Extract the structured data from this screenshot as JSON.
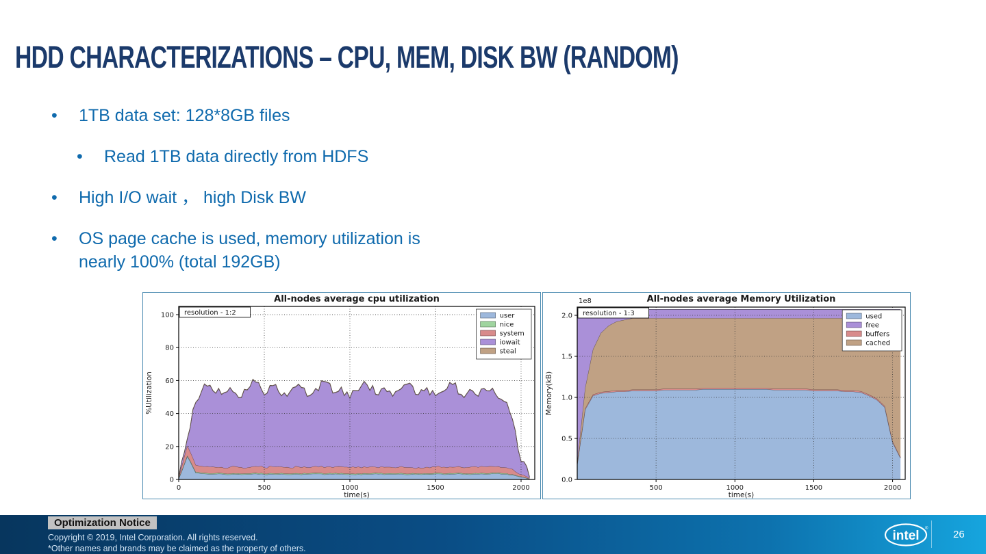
{
  "slide": {
    "title": "HDD CHARACTERIZATIONS – CPU, MEM, DISK BW (RANDOM)",
    "bullet_char": "•",
    "bullets": [
      {
        "level": 1,
        "text": "1TB data set: 128*8GB files"
      },
      {
        "level": 2,
        "text": "Read 1TB data directly from HDFS"
      },
      {
        "level": 1,
        "text": "High I/O wait ，  high Disk BW"
      },
      {
        "level": 1,
        "text": "OS page cache is used, memory utilization is nearly 100% (total 192GB)"
      }
    ]
  },
  "footer": {
    "notice": "Optimization Notice",
    "copyright": "Copyright ©  2019, Intel Corporation. All rights reserved.",
    "brands": "*Other names and brands may be claimed as the property of others.",
    "logo_text": "intel",
    "page": "26"
  },
  "colors": {
    "title_text": "#1b3a6b",
    "bullet_text": "#0f6aad",
    "chart_panel_border": "#4a8ab0",
    "footer_gradient_left": "#07365e",
    "footer_gradient_right": "#16a5de"
  },
  "chart_data": [
    {
      "type": "area",
      "stacked": true,
      "title": "All-nodes average cpu utilization",
      "annotation": "resolution - 1:2",
      "xlabel": "time(s)",
      "ylabel": "%Utilization",
      "xlim": [
        0,
        2080
      ],
      "ylim": [
        0,
        105
      ],
      "xtick_vals": [
        0,
        500,
        1000,
        1500,
        2000
      ],
      "xtick_labels": [
        "0",
        "500",
        "1000",
        "1500",
        "2000"
      ],
      "ytick_vals": [
        0,
        20,
        40,
        60,
        80,
        100
      ],
      "ytick_labels": [
        "0",
        "20",
        "40",
        "60",
        "80",
        "100"
      ],
      "grid": true,
      "legend_position": "top-right",
      "legend_order": [
        "user",
        "nice",
        "system",
        "iowait",
        "steal"
      ],
      "x": [
        0,
        50,
        100,
        150,
        200,
        250,
        300,
        350,
        400,
        450,
        500,
        550,
        600,
        650,
        700,
        750,
        800,
        850,
        900,
        950,
        1000,
        1050,
        1100,
        1150,
        1200,
        1250,
        1300,
        1350,
        1400,
        1450,
        1500,
        1550,
        1600,
        1650,
        1700,
        1750,
        1800,
        1850,
        1900,
        1950,
        2000,
        2050
      ],
      "series": [
        {
          "name": "user",
          "color": "#9db8dc",
          "jitter": 0.3,
          "values": [
            0.5,
            14,
            4,
            3.5,
            3.2,
            3.4,
            3,
            3.2,
            3.1,
            3.5,
            3,
            3.2,
            3.4,
            3,
            3.2,
            3.1,
            3.5,
            3,
            3.2,
            3.4,
            3,
            3.2,
            3.1,
            3.5,
            3,
            3.2,
            3.4,
            3,
            3.2,
            3.1,
            3.5,
            3,
            3.2,
            3.4,
            3,
            3.2,
            3.1,
            3.5,
            3.2,
            2.8,
            1.5,
            0.3
          ]
        },
        {
          "name": "nice",
          "color": "#9fd49f",
          "jitter": 0,
          "values": [
            0.2,
            0.5,
            0.5,
            0.5,
            0.5,
            0.5,
            0.5,
            0.5,
            0.5,
            0.5,
            0.5,
            0.5,
            0.5,
            0.5,
            0.5,
            0.5,
            0.5,
            0.5,
            0.5,
            0.5,
            0.5,
            0.5,
            0.5,
            0.5,
            0.5,
            0.5,
            0.5,
            0.5,
            0.5,
            0.5,
            0.5,
            0.5,
            0.5,
            0.5,
            0.5,
            0.5,
            0.5,
            0.5,
            0.5,
            0.3,
            0.2,
            0.1
          ]
        },
        {
          "name": "system",
          "color": "#d88b8b",
          "jitter": 0.5,
          "values": [
            0.5,
            6,
            4.2,
            3.8,
            4,
            3.6,
            4.1,
            3.8,
            3.6,
            4,
            3.7,
            4.1,
            3.8,
            3.6,
            4,
            3.7,
            4.1,
            3.8,
            3.6,
            4,
            3.7,
            4.1,
            3.8,
            3.6,
            4,
            3.7,
            4.1,
            3.8,
            3.6,
            4,
            3.7,
            4.1,
            3.8,
            3.6,
            4,
            3.7,
            4.1,
            3.8,
            3.6,
            3.2,
            1.2,
            0.3
          ]
        },
        {
          "name": "iowait",
          "color": "#aa90d8",
          "jitter": 3.2,
          "values": [
            0,
            4,
            38,
            50,
            46,
            44,
            48,
            42,
            47,
            51,
            44,
            49,
            43,
            46,
            50,
            43,
            47,
            52,
            45,
            48,
            42,
            46,
            50,
            44,
            48,
            43,
            47,
            51,
            44,
            48,
            43,
            46,
            50,
            44,
            47,
            43,
            46,
            44,
            40,
            30,
            8,
            0.5
          ]
        },
        {
          "name": "steal",
          "color": "#c0a184",
          "jitter": 0,
          "values": [
            0,
            0.2,
            0.2,
            0.2,
            0.2,
            0.2,
            0.2,
            0.2,
            0.2,
            0.2,
            0.2,
            0.2,
            0.2,
            0.2,
            0.2,
            0.2,
            0.2,
            0.2,
            0.2,
            0.2,
            0.2,
            0.2,
            0.2,
            0.2,
            0.2,
            0.2,
            0.2,
            0.2,
            0.2,
            0.2,
            0.2,
            0.2,
            0.2,
            0.2,
            0.2,
            0.2,
            0.2,
            0.2,
            0.2,
            0.2,
            0.1,
            0
          ]
        }
      ]
    },
    {
      "type": "area",
      "stacked": true,
      "title": "All-nodes average Memory Utilization",
      "annotation": "resolution - 1:3",
      "offset_label": "1e8",
      "xlabel": "time(s)",
      "ylabel": "Memory(kB)",
      "xlim": [
        0,
        2080
      ],
      "ylim": [
        0,
        2.1
      ],
      "xtick_vals": [
        500,
        1000,
        1500,
        2000
      ],
      "xtick_labels": [
        "500",
        "1000",
        "1500",
        "2000"
      ],
      "ytick_vals": [
        0,
        0.5,
        1.0,
        1.5,
        2.0
      ],
      "ytick_labels": [
        "0.0",
        "0.5",
        "1.0",
        "1.5",
        "2.0"
      ],
      "grid": true,
      "legend_position": "top-right",
      "legend_order": [
        "used",
        "free",
        "buffers",
        "cached"
      ],
      "x": [
        0,
        50,
        100,
        150,
        200,
        250,
        300,
        350,
        400,
        450,
        500,
        550,
        600,
        650,
        700,
        750,
        800,
        850,
        900,
        950,
        1000,
        1050,
        1100,
        1150,
        1200,
        1250,
        1300,
        1350,
        1400,
        1450,
        1500,
        1550,
        1600,
        1650,
        1700,
        1750,
        1800,
        1850,
        1900,
        1950,
        2000,
        2050
      ],
      "series": [
        {
          "name": "used",
          "color": "#9db8dc",
          "jitter": 0,
          "values": [
            0.18,
            0.85,
            1.02,
            1.05,
            1.06,
            1.07,
            1.07,
            1.08,
            1.08,
            1.08,
            1.08,
            1.09,
            1.09,
            1.09,
            1.09,
            1.09,
            1.1,
            1.1,
            1.1,
            1.1,
            1.1,
            1.1,
            1.1,
            1.1,
            1.1,
            1.09,
            1.09,
            1.09,
            1.09,
            1.09,
            1.08,
            1.08,
            1.08,
            1.08,
            1.07,
            1.07,
            1.06,
            1.02,
            0.97,
            0.88,
            0.45,
            0.26
          ]
        },
        {
          "name": "buffers",
          "color": "#d88b8b",
          "jitter": 0,
          "values": [
            0.01,
            0.015,
            0.015,
            0.015,
            0.015,
            0.015,
            0.015,
            0.015,
            0.015,
            0.015,
            0.015,
            0.015,
            0.015,
            0.015,
            0.015,
            0.015,
            0.015,
            0.015,
            0.015,
            0.015,
            0.015,
            0.015,
            0.015,
            0.015,
            0.015,
            0.015,
            0.015,
            0.015,
            0.015,
            0.015,
            0.015,
            0.015,
            0.015,
            0.015,
            0.015,
            0.015,
            0.015,
            0.015,
            0.015,
            0.015,
            0.015,
            0.01
          ]
        },
        {
          "name": "cached",
          "color": "#c0a184",
          "jitter": 0,
          "values": [
            0.02,
            0.25,
            0.55,
            0.72,
            0.8,
            0.84,
            0.86,
            0.87,
            0.87,
            0.87,
            0.87,
            0.86,
            0.86,
            0.86,
            0.86,
            0.86,
            0.85,
            0.85,
            0.85,
            0.85,
            0.85,
            0.85,
            0.85,
            0.85,
            0.85,
            0.86,
            0.86,
            0.86,
            0.86,
            0.86,
            0.87,
            0.87,
            0.87,
            0.87,
            0.88,
            0.88,
            0.89,
            0.93,
            0.97,
            1.02,
            1.3,
            1.42
          ]
        },
        {
          "name": "free",
          "color": "#aa90d8",
          "jitter": 0,
          "values": [
            1.86,
            0.955,
            0.485,
            0.285,
            0.195,
            0.145,
            0.125,
            0.105,
            0.105,
            0.105,
            0.105,
            0.105,
            0.105,
            0.105,
            0.105,
            0.105,
            0.105,
            0.105,
            0.105,
            0.105,
            0.105,
            0.105,
            0.105,
            0.105,
            0.105,
            0.105,
            0.105,
            0.105,
            0.105,
            0.105,
            0.105,
            0.105,
            0.105,
            0.105,
            0.105,
            0.105,
            0.105,
            0.105,
            0.115,
            0.155,
            0.305,
            0.38
          ]
        }
      ]
    }
  ]
}
